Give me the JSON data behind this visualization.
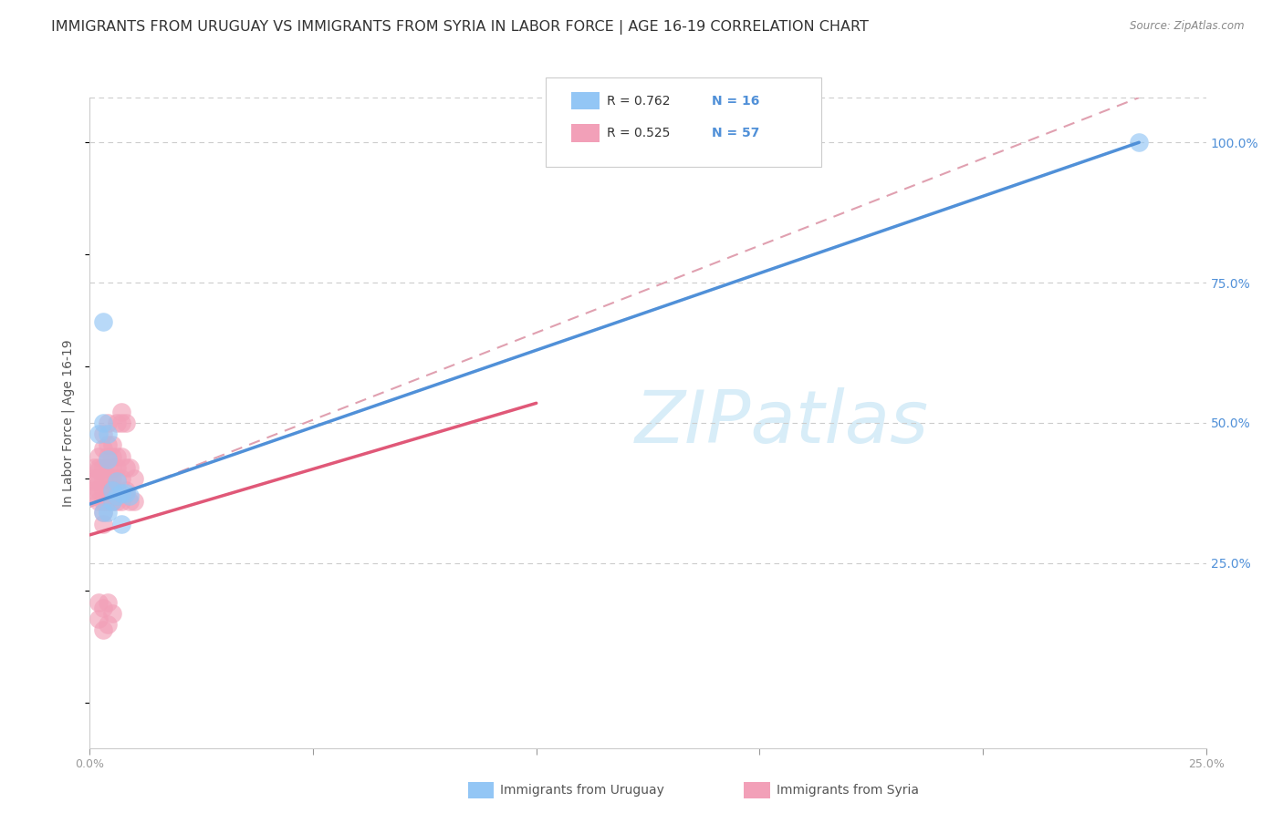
{
  "title": "IMMIGRANTS FROM URUGUAY VS IMMIGRANTS FROM SYRIA IN LABOR FORCE | AGE 16-19 CORRELATION CHART",
  "source": "Source: ZipAtlas.com",
  "ylabel": "In Labor Force | Age 16-19",
  "xlim": [
    0.0,
    0.25
  ],
  "ylim": [
    -0.08,
    1.08
  ],
  "xtick_positions": [
    0.0,
    0.05,
    0.1,
    0.15,
    0.2,
    0.25
  ],
  "xtick_labels": [
    "0.0%",
    "",
    "",
    "",
    "",
    "25.0%"
  ],
  "ytick_positions": [
    0.25,
    0.5,
    0.75,
    1.0
  ],
  "ytick_labels": [
    "25.0%",
    "50.0%",
    "75.0%",
    "100.0%"
  ],
  "color_uruguay": "#93C6F5",
  "color_syria": "#F2A0B8",
  "color_line_uruguay": "#5090D8",
  "color_line_syria": "#E05878",
  "color_ref_dashed": "#E0A0B0",
  "color_grid": "#CCCCCC",
  "color_text_blue": "#5090D8",
  "color_title": "#333333",
  "color_source": "#888888",
  "watermark_color": "#D8EDF8",
  "legend_r_uruguay": "R = 0.762",
  "legend_n_uruguay": "N = 16",
  "legend_r_syria": "R = 0.525",
  "legend_n_syria": "N = 57",
  "legend_label_uruguay": "Immigrants from Uruguay",
  "legend_label_syria": "Immigrants from Syria",
  "uruguay_x": [
    0.002,
    0.003,
    0.003,
    0.004,
    0.004,
    0.005,
    0.006,
    0.007,
    0.008,
    0.009,
    0.003,
    0.004,
    0.005,
    0.006,
    0.007,
    0.235
  ],
  "uruguay_y": [
    0.48,
    0.68,
    0.5,
    0.435,
    0.48,
    0.38,
    0.395,
    0.375,
    0.375,
    0.37,
    0.34,
    0.34,
    0.36,
    0.37,
    0.32,
    1.0
  ],
  "syria_x": [
    0.001,
    0.001,
    0.001,
    0.001,
    0.001,
    0.002,
    0.002,
    0.002,
    0.002,
    0.002,
    0.002,
    0.003,
    0.003,
    0.003,
    0.003,
    0.003,
    0.003,
    0.003,
    0.003,
    0.004,
    0.004,
    0.004,
    0.004,
    0.004,
    0.004,
    0.004,
    0.005,
    0.005,
    0.005,
    0.005,
    0.005,
    0.005,
    0.006,
    0.006,
    0.006,
    0.006,
    0.006,
    0.007,
    0.007,
    0.007,
    0.007,
    0.007,
    0.008,
    0.008,
    0.008,
    0.009,
    0.009,
    0.01,
    0.01,
    0.002,
    0.002,
    0.003,
    0.003,
    0.004,
    0.004,
    0.005,
    0.006
  ],
  "syria_y": [
    0.395,
    0.38,
    0.4,
    0.37,
    0.42,
    0.44,
    0.415,
    0.4,
    0.38,
    0.36,
    0.42,
    0.48,
    0.455,
    0.42,
    0.4,
    0.38,
    0.36,
    0.34,
    0.32,
    0.5,
    0.46,
    0.44,
    0.42,
    0.4,
    0.38,
    0.36,
    0.46,
    0.44,
    0.42,
    0.4,
    0.38,
    0.36,
    0.44,
    0.42,
    0.5,
    0.38,
    0.36,
    0.52,
    0.5,
    0.44,
    0.4,
    0.36,
    0.5,
    0.42,
    0.38,
    0.42,
    0.36,
    0.4,
    0.36,
    0.18,
    0.15,
    0.17,
    0.13,
    0.18,
    0.14,
    0.16,
    0.4
  ],
  "ury_line_x": [
    0.0,
    0.235
  ],
  "ury_line_y": [
    0.355,
    1.0
  ],
  "syr_line_x": [
    0.0,
    0.1
  ],
  "syr_line_y": [
    0.3,
    0.535
  ],
  "ref_line_x": [
    0.0,
    0.235
  ],
  "ref_line_y": [
    0.35,
    1.08
  ],
  "background_color": "#FFFFFF",
  "title_fontsize": 11.5,
  "axis_label_fontsize": 10,
  "tick_fontsize": 9,
  "legend_fontsize": 10
}
